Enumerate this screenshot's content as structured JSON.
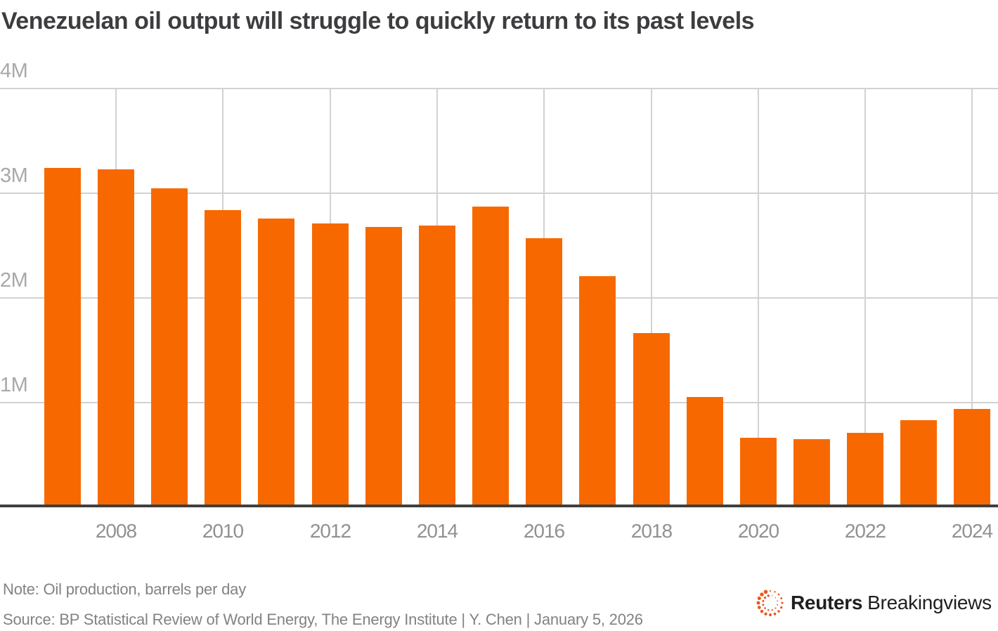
{
  "title": "Venezuelan oil output will struggle to quickly return to its past levels",
  "note": "Note: Oil production, barrels per day",
  "source": "Source: BP Statistical Review of World Energy, The Energy Institute | Y. Chen | January 5, 2026",
  "branding": {
    "logo_icon": "reuters-dotted-circle-logo",
    "brand_bold": "Reuters",
    "brand_regular": "Breakingviews"
  },
  "colors": {
    "bar_orange": "#f76900",
    "gridline_gray": "#d2d2d2",
    "axis_baseline_dark": "#3f3f3f",
    "title_text": "#3d3d40",
    "y_tick_text": "#a9a9a9",
    "x_tick_text": "#919191",
    "footnote_text": "#828282",
    "logo_orange": "#e8581e",
    "brand_text": "#1f1f1f"
  },
  "chart_data": {
    "type": "bar",
    "title": "Venezuelan oil output will struggle to quickly return to its past levels",
    "note": "Oil production, barrels per day",
    "unit": "million barrels per day",
    "categories": [
      2007,
      2008,
      2009,
      2010,
      2011,
      2012,
      2013,
      2014,
      2015,
      2016,
      2017,
      2018,
      2019,
      2020,
      2021,
      2022,
      2023,
      2024
    ],
    "values": [
      3.24,
      3.23,
      3.05,
      2.84,
      2.76,
      2.71,
      2.68,
      2.69,
      2.87,
      2.57,
      2.21,
      1.66,
      1.05,
      0.66,
      0.65,
      0.71,
      0.83,
      0.94
    ],
    "x_tick_labels": [
      "2008",
      "2010",
      "2012",
      "2014",
      "2016",
      "2018",
      "2020",
      "2022",
      "2024"
    ],
    "y_tick_labels": [
      "1M",
      "2M",
      "3M",
      "4M"
    ],
    "ylim": [
      0,
      4
    ],
    "grid": true,
    "legend": false,
    "bar_color": "#f76900"
  }
}
